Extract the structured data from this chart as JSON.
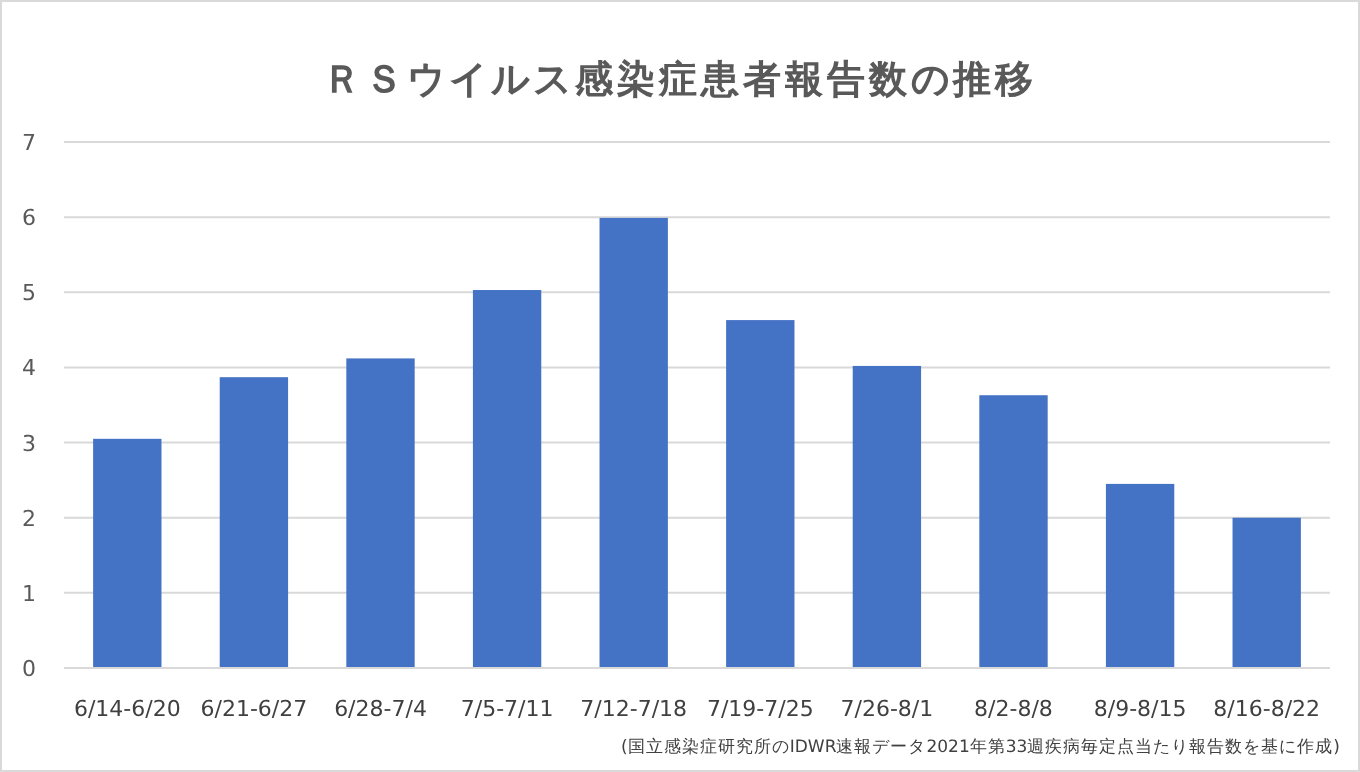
{
  "chart_data": {
    "type": "bar",
    "title": "ＲＳウイルス感染症患者報告数の推移",
    "categories": [
      "6/14-6/20",
      "6/21-6/27",
      "6/28-7/4",
      "7/5-7/11",
      "7/12-7/18",
      "7/19-7/25",
      "7/26-8/1",
      "8/2-8/8",
      "8/9-8/15",
      "8/16-8/22"
    ],
    "values": [
      3.05,
      3.87,
      4.12,
      5.03,
      5.99,
      4.63,
      4.02,
      3.63,
      2.45,
      2.0
    ],
    "color": "#4472c4",
    "ylim": [
      0,
      7
    ],
    "yticks": [
      0,
      1,
      2,
      3,
      4,
      5,
      6,
      7
    ],
    "grid": "y",
    "annotations": [
      "(国立感染症研究所のIDWR速報データ2021年第33週疾病毎定点当たり報告数を基に作成)"
    ]
  }
}
